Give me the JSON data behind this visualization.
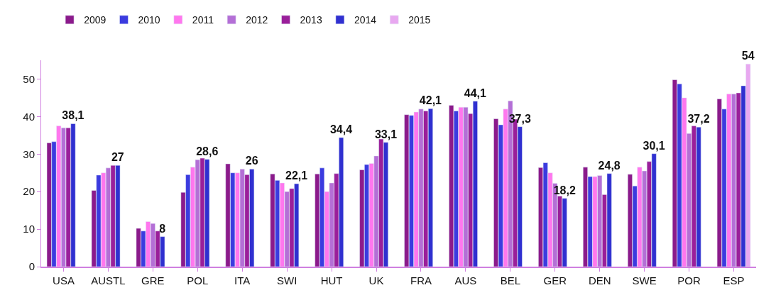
{
  "chart_data": {
    "type": "bar",
    "categories": [
      "USA",
      "AUSTL",
      "GRE",
      "POL",
      "ITA",
      "SWI",
      "HUT",
      "UK",
      "FRA",
      "AUS",
      "BEL",
      "GER",
      "DEN",
      "SWE",
      "POR",
      "ESP"
    ],
    "series": [
      {
        "name": "2009",
        "color": "#8b1a8b",
        "values": [
          33,
          20.3,
          10.2,
          19.8,
          27.4,
          24.7,
          24.7,
          25.8,
          40.5,
          43,
          39.4,
          26.4,
          26.5,
          24.6,
          49.8,
          44.7
        ]
      },
      {
        "name": "2010",
        "color": "#3b3bdf",
        "values": [
          33.3,
          24.4,
          9.5,
          24.5,
          25,
          23,
          26.3,
          27.2,
          40.3,
          41.5,
          37.8,
          27.7,
          24,
          21.5,
          48.7,
          42
        ]
      },
      {
        "name": "2011",
        "color": "#ff77ee",
        "values": [
          37.5,
          25,
          12,
          26.5,
          25,
          22.3,
          20,
          27.5,
          41.2,
          42.5,
          42,
          25,
          24,
          26.5,
          45,
          46
        ]
      },
      {
        "name": "2012",
        "color": "#b46fd6",
        "values": [
          37,
          26.3,
          11.5,
          28.5,
          26,
          20,
          22.3,
          29.5,
          42,
          42.5,
          44.2,
          22.2,
          24.3,
          25.5,
          35.5,
          46
        ]
      },
      {
        "name": "2013",
        "color": "#9a1f9a",
        "values": [
          37,
          27,
          9.5,
          28.9,
          24.5,
          20.8,
          24.8,
          34,
          41.5,
          40.8,
          39.3,
          18.8,
          19.2,
          28,
          37.5,
          46.3
        ]
      },
      {
        "name": "2014",
        "color": "#3030d0",
        "values": [
          38.1,
          27,
          8,
          28.6,
          26,
          22.1,
          34.4,
          33.1,
          42.1,
          44.1,
          37.3,
          18.2,
          24.8,
          30.1,
          37.2,
          48.2
        ],
        "value_labels": [
          "38,1",
          "27",
          "8",
          "28,6",
          "26",
          "22,1",
          "34,4",
          "33,1",
          "42,1",
          "44,1",
          "37,3",
          "18,2",
          "24,8",
          "30,1",
          "37,2",
          null
        ]
      },
      {
        "name": "2015",
        "color": "#e8a8f0",
        "values": [
          null,
          null,
          null,
          null,
          null,
          null,
          null,
          null,
          null,
          null,
          null,
          null,
          null,
          null,
          null,
          54
        ],
        "value_labels": [
          null,
          null,
          null,
          null,
          null,
          null,
          null,
          null,
          null,
          null,
          null,
          null,
          null,
          null,
          null,
          "54"
        ]
      }
    ],
    "ylim": [
      0,
      55
    ],
    "yticks": [
      0,
      10,
      20,
      30,
      40,
      50
    ],
    "legend": "top"
  }
}
